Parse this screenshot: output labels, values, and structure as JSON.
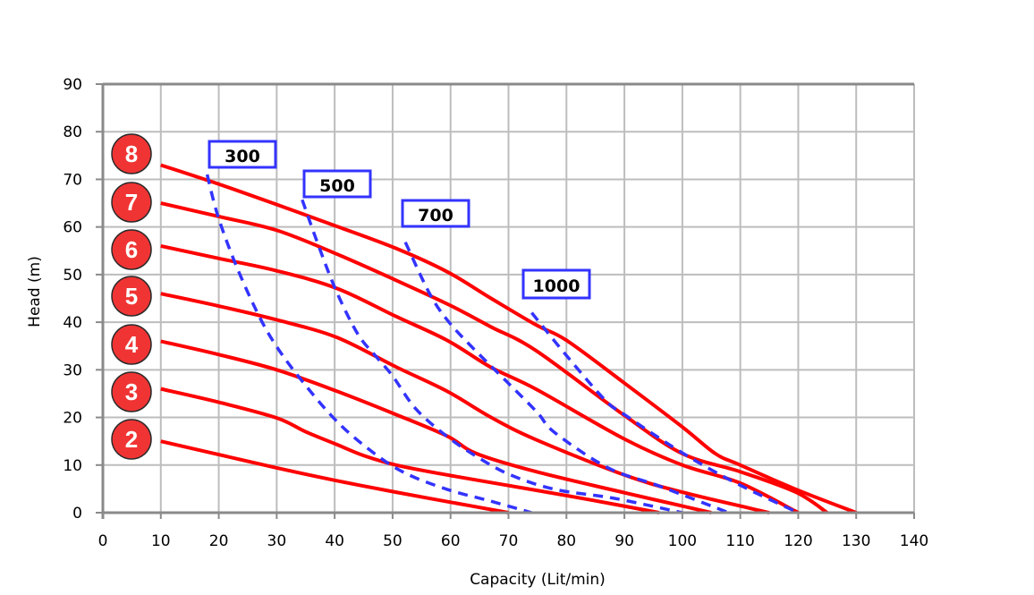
{
  "chart_data": {
    "type": "line",
    "title": "",
    "xlabel": "Capacity (Lit/min)",
    "ylabel": "Head (m)",
    "xlim": [
      0,
      140
    ],
    "ylim": [
      0,
      90
    ],
    "xticks": [
      0,
      10,
      20,
      30,
      40,
      50,
      60,
      70,
      80,
      90,
      100,
      110,
      120,
      130,
      140
    ],
    "yticks": [
      0,
      10,
      20,
      30,
      40,
      50,
      60,
      70,
      80,
      90
    ],
    "grid": true,
    "colors": {
      "pressure_curve": "#ff0000",
      "air_curve": "#3333ff",
      "badge_fill": "#f03434",
      "grid": "#bdbdbd",
      "axis": "#8a8a8a"
    },
    "series": [
      {
        "name": "2",
        "style": "solid",
        "points": [
          [
            10,
            15
          ],
          [
            20,
            12.2
          ],
          [
            30,
            9.4
          ],
          [
            40,
            6.8
          ],
          [
            50.6,
            4.3
          ],
          [
            60,
            2.2
          ],
          [
            70,
            0
          ]
        ]
      },
      {
        "name": "3",
        "style": "solid",
        "points": [
          [
            10,
            26
          ],
          [
            20,
            23.2
          ],
          [
            30,
            19.9
          ],
          [
            35,
            17
          ],
          [
            40.4,
            14.3
          ],
          [
            45,
            12
          ],
          [
            50.6,
            10
          ],
          [
            60,
            7.8
          ],
          [
            74.8,
            4.7
          ],
          [
            85,
            2.5
          ],
          [
            96,
            0
          ]
        ]
      },
      {
        "name": "4",
        "style": "solid",
        "points": [
          [
            10,
            36
          ],
          [
            20,
            33.2
          ],
          [
            30,
            30
          ],
          [
            40.4,
            25.5
          ],
          [
            50.6,
            20.6
          ],
          [
            59.4,
            16.1
          ],
          [
            64.5,
            12.4
          ],
          [
            74.8,
            8.6
          ],
          [
            90,
            4.2
          ],
          [
            105,
            0
          ]
        ]
      },
      {
        "name": "5",
        "style": "solid",
        "points": [
          [
            10,
            46
          ],
          [
            20,
            43.4
          ],
          [
            30,
            40.5
          ],
          [
            40.4,
            36.8
          ],
          [
            50.6,
            30.6
          ],
          [
            59.4,
            25.5
          ],
          [
            67,
            20
          ],
          [
            74.8,
            15.3
          ],
          [
            89.8,
            8
          ],
          [
            100,
            4.3
          ],
          [
            115,
            0
          ]
        ]
      },
      {
        "name": "6",
        "style": "solid",
        "points": [
          [
            10,
            56
          ],
          [
            20,
            53.4
          ],
          [
            30,
            50.8
          ],
          [
            40.4,
            47.1
          ],
          [
            50.6,
            41.2
          ],
          [
            59.4,
            36.2
          ],
          [
            67,
            30.5
          ],
          [
            74.8,
            25.9
          ],
          [
            89.8,
            15.6
          ],
          [
            100,
            10
          ],
          [
            110,
            6.2
          ],
          [
            120,
            0
          ]
        ]
      },
      {
        "name": "7",
        "style": "solid",
        "points": [
          [
            10,
            65
          ],
          [
            20,
            62.2
          ],
          [
            30,
            59.3
          ],
          [
            40,
            54.5
          ],
          [
            50.6,
            48.8
          ],
          [
            60,
            43.5
          ],
          [
            67,
            39
          ],
          [
            74.8,
            34
          ],
          [
            89.8,
            20.6
          ],
          [
            100,
            12.4
          ],
          [
            110,
            8.6
          ],
          [
            119.6,
            4.3
          ],
          [
            125,
            0
          ]
        ]
      },
      {
        "name": "8",
        "style": "solid",
        "points": [
          [
            10,
            73
          ],
          [
            20,
            69
          ],
          [
            30,
            64.7
          ],
          [
            40,
            60.3
          ],
          [
            50.6,
            55.5
          ],
          [
            59.4,
            50.6
          ],
          [
            67,
            45
          ],
          [
            74.8,
            39.4
          ],
          [
            80,
            36.2
          ],
          [
            89.8,
            27.4
          ],
          [
            100,
            18
          ],
          [
            105.7,
            12.4
          ],
          [
            110,
            10
          ],
          [
            119.6,
            4.9
          ],
          [
            130,
            0
          ]
        ]
      },
      {
        "name": "300",
        "style": "dashed",
        "points": [
          [
            18,
            71
          ],
          [
            19.8,
            62.5
          ],
          [
            22.8,
            52.5
          ],
          [
            26.5,
            42.4
          ],
          [
            29.6,
            35.6
          ],
          [
            33.7,
            28.7
          ],
          [
            39.8,
            19.9
          ],
          [
            45.5,
            13.7
          ],
          [
            51.7,
            8.6
          ],
          [
            59.4,
            4.9
          ],
          [
            67,
            2.4
          ],
          [
            74,
            0
          ]
        ]
      },
      {
        "name": "500",
        "style": "dashed",
        "points": [
          [
            34.4,
            65.7
          ],
          [
            37.3,
            55.8
          ],
          [
            40.4,
            46.2
          ],
          [
            44,
            37.5
          ],
          [
            47,
            33
          ],
          [
            50,
            28.7
          ],
          [
            54,
            21.8
          ],
          [
            59.4,
            16
          ],
          [
            64.5,
            11.8
          ],
          [
            70.2,
            8
          ],
          [
            78,
            4.9
          ],
          [
            88.3,
            3
          ],
          [
            100,
            0
          ]
        ]
      },
      {
        "name": "700",
        "style": "dashed",
        "points": [
          [
            52.2,
            56.8
          ],
          [
            56.3,
            46.2
          ],
          [
            59.4,
            40.5
          ],
          [
            63.6,
            34.9
          ],
          [
            69.8,
            27.4
          ],
          [
            75,
            21
          ],
          [
            78,
            16.8
          ],
          [
            87.2,
            9.4
          ],
          [
            96,
            5.6
          ],
          [
            108,
            0
          ]
        ]
      },
      {
        "name": "1000",
        "style": "dashed",
        "points": [
          [
            74,
            42
          ],
          [
            80,
            33
          ],
          [
            86.7,
            23.6
          ],
          [
            90,
            20.6
          ],
          [
            98.5,
            13.7
          ],
          [
            105,
            9
          ],
          [
            111.4,
            4.9
          ],
          [
            120,
            0
          ]
        ]
      }
    ],
    "curve_badges": [
      "8",
      "7",
      "6",
      "5",
      "4",
      "3",
      "2"
    ],
    "air_labels": [
      "300",
      "500",
      "700",
      "1000"
    ]
  }
}
